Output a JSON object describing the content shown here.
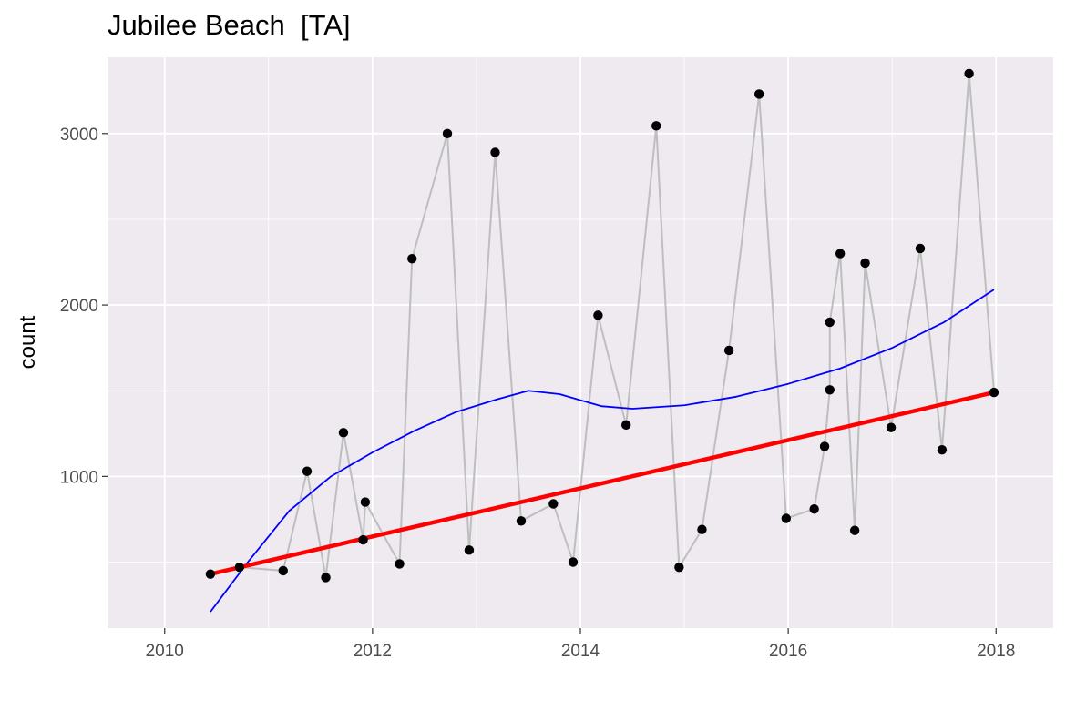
{
  "chart_data": {
    "type": "line",
    "title": "Jubilee Beach  [TA]",
    "xlabel": "",
    "ylabel": "count",
    "xlim": [
      2009.45,
      2018.55
    ],
    "ylim": [
      115,
      3445
    ],
    "x_major_ticks": [
      2010,
      2012,
      2014,
      2016,
      2018
    ],
    "x_minor_ticks": [
      2011,
      2013,
      2015,
      2017
    ],
    "y_major_ticks": [
      1000,
      2000,
      3000
    ],
    "y_minor_ticks": [
      500,
      1500,
      2500
    ],
    "x_tick_labels": [
      "2010",
      "2012",
      "2014",
      "2016",
      "2018"
    ],
    "y_tick_labels": [
      "1000",
      "2000",
      "3000"
    ],
    "grid": true,
    "series": [
      {
        "style": "points connected by line",
        "color": "#000000",
        "line_color": "#bebebe",
        "points": [
          {
            "x": 2010.44,
            "y": 430
          },
          {
            "x": 2010.72,
            "y": 470
          },
          {
            "x": 2011.14,
            "y": 450
          },
          {
            "x": 2011.37,
            "y": 1030
          },
          {
            "x": 2011.55,
            "y": 410
          },
          {
            "x": 2011.72,
            "y": 1255
          },
          {
            "x": 2011.91,
            "y": 630
          },
          {
            "x": 2011.93,
            "y": 850
          },
          {
            "x": 2012.26,
            "y": 490
          },
          {
            "x": 2012.38,
            "y": 2270
          },
          {
            "x": 2012.72,
            "y": 3000
          },
          {
            "x": 2012.93,
            "y": 570
          },
          {
            "x": 2013.18,
            "y": 2890
          },
          {
            "x": 2013.43,
            "y": 740
          },
          {
            "x": 2013.74,
            "y": 840
          },
          {
            "x": 2013.93,
            "y": 500
          },
          {
            "x": 2014.17,
            "y": 1940
          },
          {
            "x": 2014.44,
            "y": 1300
          },
          {
            "x": 2014.73,
            "y": 3045
          },
          {
            "x": 2014.95,
            "y": 470
          },
          {
            "x": 2015.17,
            "y": 690
          },
          {
            "x": 2015.43,
            "y": 1735
          },
          {
            "x": 2015.72,
            "y": 3230
          },
          {
            "x": 2015.98,
            "y": 755
          },
          {
            "x": 2016.25,
            "y": 810
          },
          {
            "x": 2016.35,
            "y": 1175
          },
          {
            "x": 2016.4,
            "y": 1505
          },
          {
            "x": 2016.4,
            "y": 1900
          },
          {
            "x": 2016.5,
            "y": 2300
          },
          {
            "x": 2016.64,
            "y": 685
          },
          {
            "x": 2016.74,
            "y": 2245
          },
          {
            "x": 2016.99,
            "y": 1285
          },
          {
            "x": 2017.27,
            "y": 2330
          },
          {
            "x": 2017.48,
            "y": 1155
          },
          {
            "x": 2017.74,
            "y": 3350
          },
          {
            "x": 2017.98,
            "y": 1490
          }
        ]
      },
      {
        "style": "smooth line",
        "color": "#0000ff",
        "points": [
          {
            "x": 2010.44,
            "y": 210
          },
          {
            "x": 2010.8,
            "y": 500
          },
          {
            "x": 2011.2,
            "y": 800
          },
          {
            "x": 2011.6,
            "y": 1000
          },
          {
            "x": 2012.0,
            "y": 1140
          },
          {
            "x": 2012.4,
            "y": 1265
          },
          {
            "x": 2012.8,
            "y": 1375
          },
          {
            "x": 2013.2,
            "y": 1450
          },
          {
            "x": 2013.5,
            "y": 1500
          },
          {
            "x": 2013.8,
            "y": 1480
          },
          {
            "x": 2014.2,
            "y": 1410
          },
          {
            "x": 2014.5,
            "y": 1395
          },
          {
            "x": 2015.0,
            "y": 1415
          },
          {
            "x": 2015.5,
            "y": 1465
          },
          {
            "x": 2016.0,
            "y": 1540
          },
          {
            "x": 2016.5,
            "y": 1630
          },
          {
            "x": 2017.0,
            "y": 1750
          },
          {
            "x": 2017.5,
            "y": 1900
          },
          {
            "x": 2017.98,
            "y": 2090
          }
        ]
      },
      {
        "style": "straight line",
        "color": "#ff0000",
        "points": [
          {
            "x": 2010.44,
            "y": 430
          },
          {
            "x": 2017.98,
            "y": 1490
          }
        ]
      }
    ]
  }
}
